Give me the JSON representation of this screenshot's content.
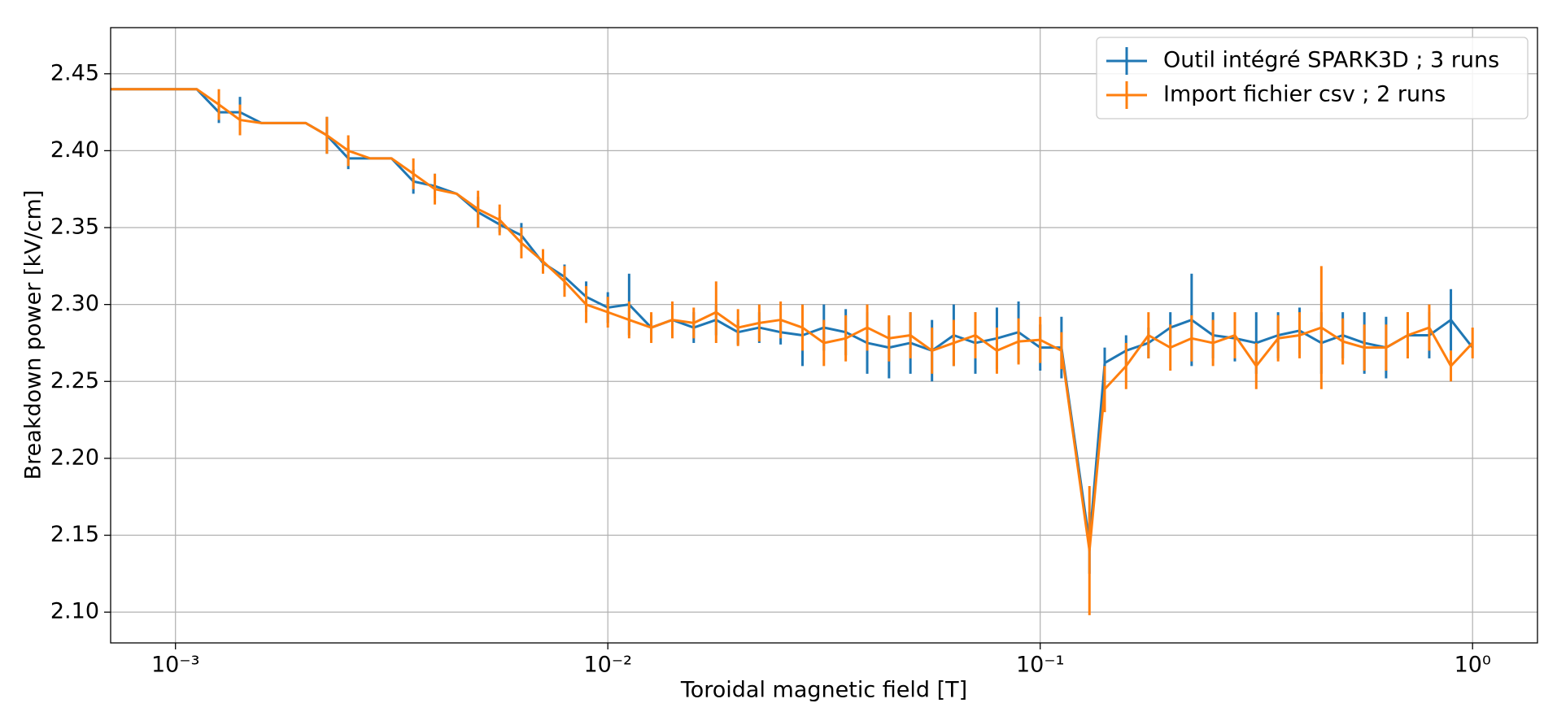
{
  "chart_data": {
    "type": "errorbar-line",
    "x_label": "Toroidal magnetic field [T]",
    "y_label": "Breakdown power [kV/cm]",
    "x_scale": "log",
    "xlim": [
      0.000708,
      1.413
    ],
    "ylim": [
      2.08,
      2.48
    ],
    "xticks": [
      {
        "value": 0.001,
        "label": "10⁻³"
      },
      {
        "value": 0.01,
        "label": "10⁻²"
      },
      {
        "value": 0.1,
        "label": "10⁻¹"
      },
      {
        "value": 1,
        "label": "10⁰"
      }
    ],
    "yticks": [
      {
        "value": 2.1,
        "label": "2.10"
      },
      2.15,
      {
        "value": 2.2,
        "label": "2.20"
      },
      2.25,
      {
        "value": 2.3,
        "label": "2.30"
      },
      2.35,
      {
        "value": 2.4,
        "label": "2.40"
      },
      2.45
    ],
    "grid": true,
    "legend": "upper right",
    "x": [
      0.0005,
      0.001,
      0.00112,
      0.00126,
      0.00141,
      0.00158,
      0.00178,
      0.002,
      0.00224,
      0.00251,
      0.00282,
      0.00316,
      0.00355,
      0.00398,
      0.00447,
      0.00501,
      0.00562,
      0.00631,
      0.00708,
      0.00794,
      0.00891,
      0.01,
      0.0112,
      0.0126,
      0.0141,
      0.0158,
      0.0178,
      0.02,
      0.0224,
      0.0251,
      0.0282,
      0.0316,
      0.0355,
      0.0398,
      0.0447,
      0.0501,
      0.0562,
      0.0631,
      0.0708,
      0.0794,
      0.0891,
      0.1,
      0.112,
      0.13,
      0.141,
      0.158,
      0.178,
      0.2,
      0.224,
      0.251,
      0.282,
      0.316,
      0.355,
      0.398,
      0.447,
      0.501,
      0.562,
      0.631,
      0.708,
      0.794,
      0.891,
      1.0
    ],
    "series": [
      {
        "name": "Outil intégré SPARK3D ; 3 runs",
        "color": "#1f77b4",
        "values": [
          2.44,
          2.44,
          2.44,
          2.425,
          2.425,
          2.418,
          2.418,
          2.418,
          2.41,
          2.395,
          2.395,
          2.395,
          2.38,
          2.377,
          2.372,
          2.36,
          2.352,
          2.345,
          2.327,
          2.318,
          2.305,
          2.298,
          2.3,
          2.285,
          2.29,
          2.285,
          2.29,
          2.282,
          2.285,
          2.282,
          2.28,
          2.285,
          2.282,
          2.275,
          2.272,
          2.275,
          2.27,
          2.28,
          2.275,
          2.278,
          2.282,
          2.272,
          2.272,
          2.145,
          2.262,
          2.27,
          2.275,
          2.285,
          2.29,
          2.28,
          2.278,
          2.275,
          2.28,
          2.283,
          2.275,
          2.28,
          2.275,
          2.272,
          2.28,
          2.28,
          2.29,
          2.272
        ],
        "errors": [
          0,
          0,
          0,
          0.007,
          0.01,
          0,
          0,
          0,
          0.012,
          0.007,
          0,
          0,
          0.008,
          0.008,
          0,
          0.01,
          0.005,
          0.008,
          0.005,
          0.008,
          0.01,
          0.01,
          0.02,
          0.008,
          0.01,
          0.01,
          0.01,
          0.008,
          0.01,
          0.008,
          0.02,
          0.015,
          0.015,
          0.02,
          0.02,
          0.02,
          0.02,
          0.02,
          0.02,
          0.02,
          0.02,
          0.015,
          0.02,
          0.02,
          0.01,
          0.01,
          0.01,
          0.01,
          0.03,
          0.015,
          0.015,
          0.02,
          0.015,
          0.015,
          0.02,
          0.015,
          0.02,
          0.02,
          0.015,
          0.015,
          0.02,
          0
        ]
      },
      {
        "name": "Import fichier csv ; 2 runs",
        "color": "#ff7f0e",
        "values": [
          2.44,
          2.44,
          2.44,
          2.43,
          2.42,
          2.418,
          2.418,
          2.418,
          2.41,
          2.4,
          2.395,
          2.395,
          2.385,
          2.375,
          2.372,
          2.362,
          2.355,
          2.34,
          2.328,
          2.315,
          2.3,
          2.295,
          2.29,
          2.285,
          2.29,
          2.288,
          2.295,
          2.285,
          2.288,
          2.29,
          2.285,
          2.275,
          2.278,
          2.285,
          2.278,
          2.28,
          2.27,
          2.275,
          2.28,
          2.27,
          2.276,
          2.277,
          2.27,
          2.14,
          2.245,
          2.26,
          2.28,
          2.272,
          2.278,
          2.275,
          2.28,
          2.26,
          2.278,
          2.28,
          2.285,
          2.276,
          2.272,
          2.272,
          2.28,
          2.285,
          2.26,
          2.275
        ],
        "errors": [
          0,
          0,
          0,
          0.01,
          0.01,
          0,
          0,
          0,
          0.012,
          0.01,
          0,
          0,
          0.01,
          0.01,
          0,
          0.012,
          0.01,
          0.01,
          0.008,
          0.01,
          0.012,
          0.01,
          0.012,
          0.01,
          0.012,
          0.01,
          0.02,
          0.012,
          0.012,
          0.012,
          0.015,
          0.015,
          0.015,
          0.015,
          0.015,
          0.015,
          0.015,
          0.015,
          0.015,
          0.015,
          0.015,
          0.015,
          0.012,
          0.042,
          0.015,
          0.015,
          0.015,
          0.015,
          0.015,
          0.015,
          0.015,
          0.015,
          0.015,
          0.015,
          0.04,
          0.015,
          0.015,
          0.015,
          0.015,
          0.015,
          0.01,
          0.01
        ]
      }
    ]
  }
}
